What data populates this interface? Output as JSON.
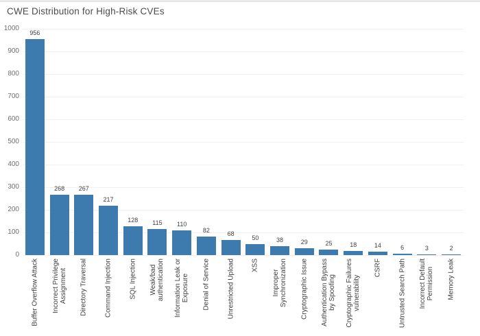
{
  "title": "CWE Distribution for High-Risk CVEs",
  "colors": {
    "bar": "#3d7aad",
    "grid": "#f0f0f0",
    "title_text": "#4b4b4b",
    "axis_text": "#6e6e6e",
    "label_text": "#3f3f3f"
  },
  "chart_data": {
    "type": "bar",
    "title": "CWE Distribution for High-Risk CVEs",
    "categories": [
      "Buffer Overflow Attack",
      "Incorrect Privilege\nAssignment",
      "Directory Traversal",
      "Command Injection",
      "SQL Injection",
      "Weak/bad\nauthentication",
      "Information Leak or\nExposure",
      "Denial of Service",
      "Unrestricted Upload",
      "XSS",
      "Improper\nSynchronization",
      "Cryptographic Issue",
      "Authentication Bypass\nby Spoofing",
      "Cryptographic Failures\nvulnerability",
      "CSRF",
      "Untrusted Search Path",
      "Incorrect Default\nPermission",
      "Memory Leak"
    ],
    "values": [
      956,
      268,
      267,
      217,
      128,
      115,
      110,
      82,
      68,
      50,
      38,
      29,
      25,
      18,
      14,
      6,
      3,
      2
    ],
    "xlabel": "",
    "ylabel": "",
    "ylim": [
      0,
      1000
    ],
    "yticks": [
      0,
      100,
      200,
      300,
      400,
      500,
      600,
      700,
      800,
      900,
      1000
    ],
    "grid": "horizontal",
    "value_labels": true,
    "legend": "none",
    "bar_label_rotation": -90
  }
}
